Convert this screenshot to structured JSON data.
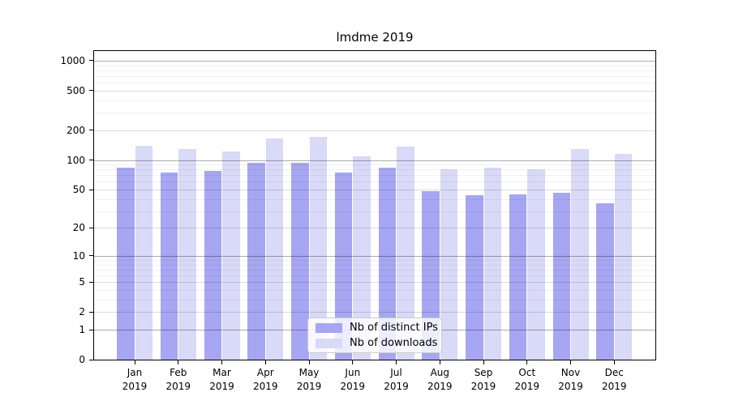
{
  "title": "lmdme 2019",
  "chart_data": {
    "type": "bar",
    "title": "lmdme 2019",
    "categories": [
      "Jan",
      "Feb",
      "Mar",
      "Apr",
      "May",
      "Jun",
      "Jul",
      "Aug",
      "Sep",
      "Oct",
      "Nov",
      "Dec"
    ],
    "x_year": "2019",
    "series": [
      {
        "name": "Nb of distinct IPs",
        "color": "#a6a6f2",
        "values": [
          84,
          74,
          78,
          93,
          93,
          74,
          84,
          48,
          44,
          45,
          46,
          36
        ]
      },
      {
        "name": "Nb of downloads",
        "color": "#d9d9f8",
        "values": [
          140,
          128,
          122,
          164,
          171,
          108,
          136,
          81,
          83,
          80,
          128,
          116
        ]
      }
    ],
    "y_ticks": [
      1000,
      500,
      200,
      100,
      50,
      20,
      10,
      5,
      2,
      1,
      0
    ],
    "y_scale": "log1p",
    "ylim": [
      0,
      1250
    ],
    "grid": true,
    "legend_position": "bottom-center",
    "axis_color": "#000000"
  }
}
